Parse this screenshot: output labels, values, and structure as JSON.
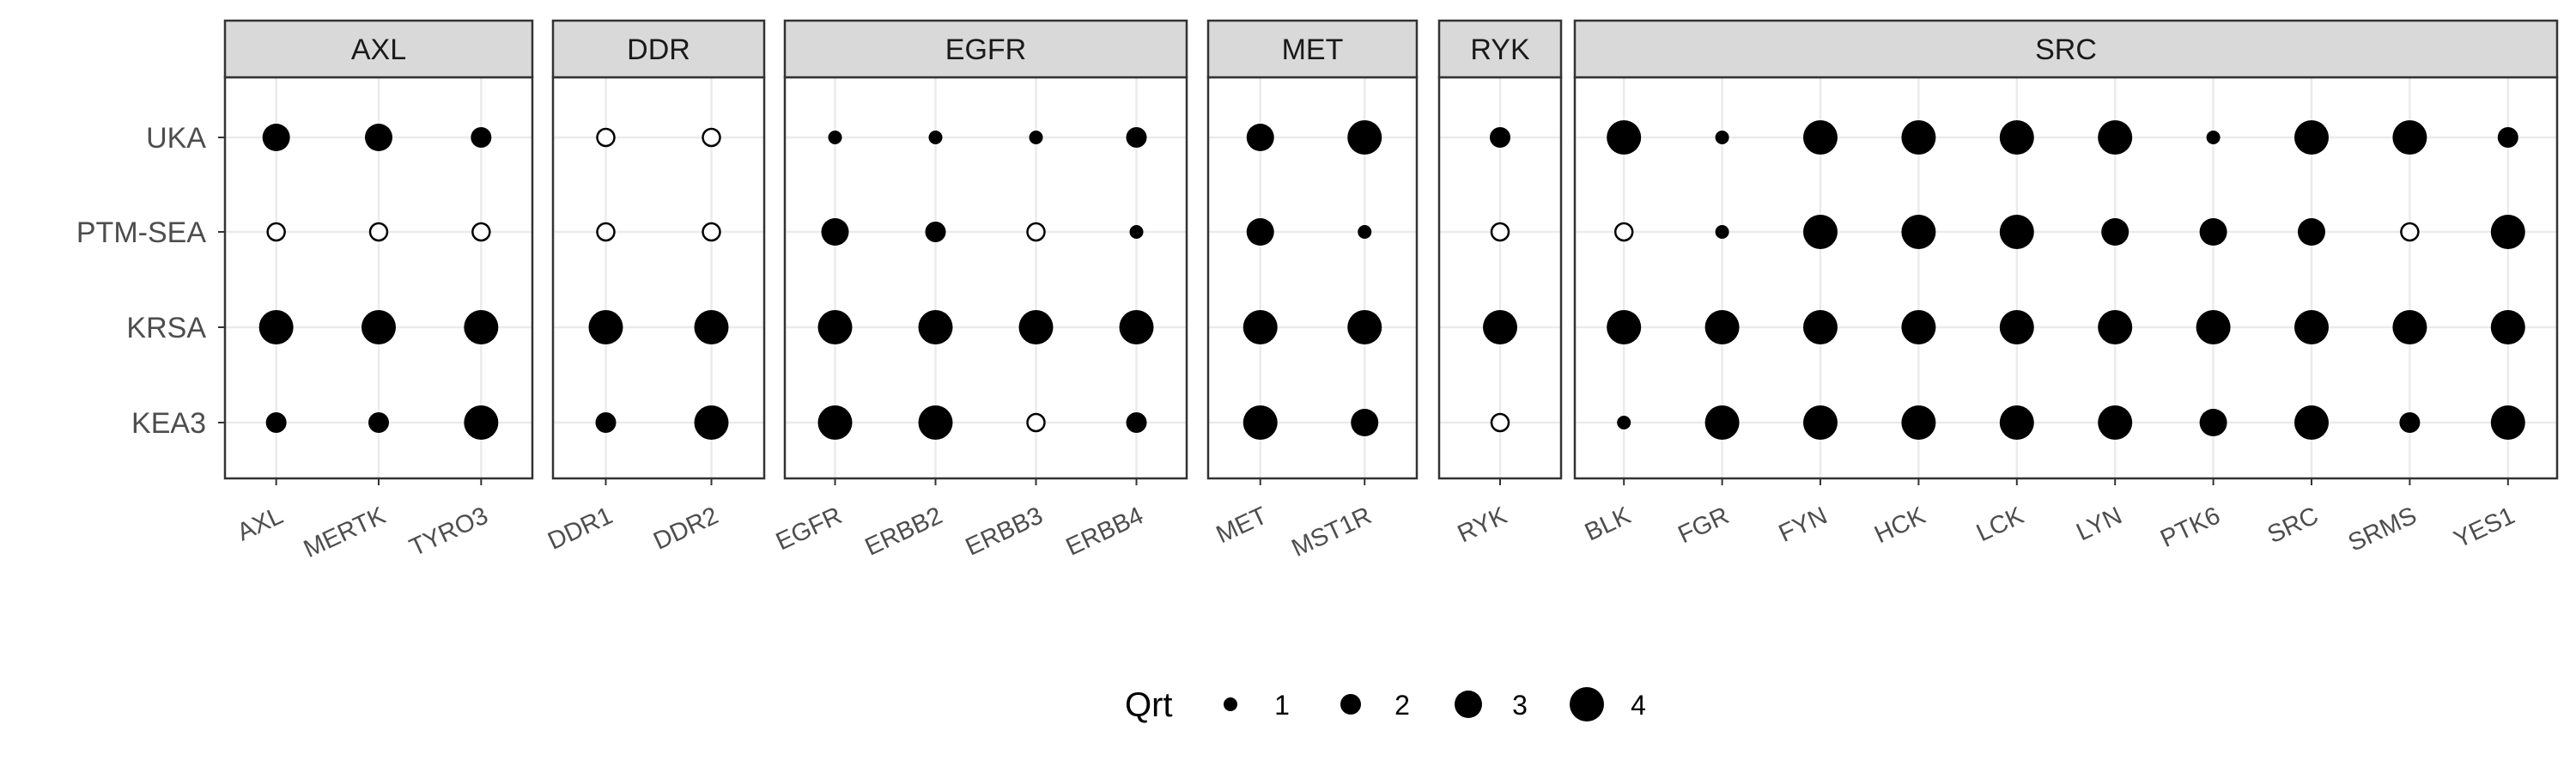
{
  "chart_data": {
    "type": "scatter",
    "y_categories": [
      "UKA",
      "PTM-SEA",
      "KRSA",
      "KEA3"
    ],
    "facets": [
      {
        "name": "AXL",
        "kinases": [
          "AXL",
          "MERTK",
          "TYRO3"
        ]
      },
      {
        "name": "DDR",
        "kinases": [
          "DDR1",
          "DDR2"
        ]
      },
      {
        "name": "EGFR",
        "kinases": [
          "EGFR",
          "ERBB2",
          "ERBB3",
          "ERBB4"
        ]
      },
      {
        "name": "MET",
        "kinases": [
          "MET",
          "MST1R"
        ]
      },
      {
        "name": "RYK",
        "kinases": [
          "RYK"
        ]
      },
      {
        "name": "SRC",
        "kinases": [
          "BLK",
          "FGR",
          "FYN",
          "HCK",
          "LCK",
          "LYN",
          "PTK6",
          "SRC",
          "SRMS",
          "YES1"
        ]
      }
    ],
    "points": [
      {
        "x": "AXL",
        "y": "UKA",
        "qrt": 3
      },
      {
        "x": "MERTK",
        "y": "UKA",
        "qrt": 3
      },
      {
        "x": "TYRO3",
        "y": "UKA",
        "qrt": 2
      },
      {
        "x": "AXL",
        "y": "PTM-SEA",
        "qrt": null
      },
      {
        "x": "MERTK",
        "y": "PTM-SEA",
        "qrt": null
      },
      {
        "x": "TYRO3",
        "y": "PTM-SEA",
        "qrt": null
      },
      {
        "x": "AXL",
        "y": "KRSA",
        "qrt": 4
      },
      {
        "x": "MERTK",
        "y": "KRSA",
        "qrt": 4
      },
      {
        "x": "TYRO3",
        "y": "KRSA",
        "qrt": 4
      },
      {
        "x": "AXL",
        "y": "KEA3",
        "qrt": 2
      },
      {
        "x": "MERTK",
        "y": "KEA3",
        "qrt": 2
      },
      {
        "x": "TYRO3",
        "y": "KEA3",
        "qrt": 4
      },
      {
        "x": "DDR1",
        "y": "UKA",
        "qrt": null
      },
      {
        "x": "DDR2",
        "y": "UKA",
        "qrt": null
      },
      {
        "x": "DDR1",
        "y": "PTM-SEA",
        "qrt": null
      },
      {
        "x": "DDR2",
        "y": "PTM-SEA",
        "qrt": null
      },
      {
        "x": "DDR1",
        "y": "KRSA",
        "qrt": 4
      },
      {
        "x": "DDR2",
        "y": "KRSA",
        "qrt": 4
      },
      {
        "x": "DDR1",
        "y": "KEA3",
        "qrt": 2
      },
      {
        "x": "DDR2",
        "y": "KEA3",
        "qrt": 4
      },
      {
        "x": "EGFR",
        "y": "UKA",
        "qrt": 1
      },
      {
        "x": "ERBB2",
        "y": "UKA",
        "qrt": 1
      },
      {
        "x": "ERBB3",
        "y": "UKA",
        "qrt": 1
      },
      {
        "x": "ERBB4",
        "y": "UKA",
        "qrt": 2
      },
      {
        "x": "EGFR",
        "y": "PTM-SEA",
        "qrt": 3
      },
      {
        "x": "ERBB2",
        "y": "PTM-SEA",
        "qrt": 2
      },
      {
        "x": "ERBB3",
        "y": "PTM-SEA",
        "qrt": null
      },
      {
        "x": "ERBB4",
        "y": "PTM-SEA",
        "qrt": 1
      },
      {
        "x": "EGFR",
        "y": "KRSA",
        "qrt": 4
      },
      {
        "x": "ERBB2",
        "y": "KRSA",
        "qrt": 4
      },
      {
        "x": "ERBB3",
        "y": "KRSA",
        "qrt": 4
      },
      {
        "x": "ERBB4",
        "y": "KRSA",
        "qrt": 4
      },
      {
        "x": "EGFR",
        "y": "KEA3",
        "qrt": 4
      },
      {
        "x": "ERBB2",
        "y": "KEA3",
        "qrt": 4
      },
      {
        "x": "ERBB3",
        "y": "KEA3",
        "qrt": null
      },
      {
        "x": "ERBB4",
        "y": "KEA3",
        "qrt": 2
      },
      {
        "x": "MET",
        "y": "UKA",
        "qrt": 3
      },
      {
        "x": "MST1R",
        "y": "UKA",
        "qrt": 4
      },
      {
        "x": "MET",
        "y": "PTM-SEA",
        "qrt": 3
      },
      {
        "x": "MST1R",
        "y": "PTM-SEA",
        "qrt": 1
      },
      {
        "x": "MET",
        "y": "KRSA",
        "qrt": 4
      },
      {
        "x": "MST1R",
        "y": "KRSA",
        "qrt": 4
      },
      {
        "x": "MET",
        "y": "KEA3",
        "qrt": 4
      },
      {
        "x": "MST1R",
        "y": "KEA3",
        "qrt": 3
      },
      {
        "x": "RYK",
        "y": "UKA",
        "qrt": 2
      },
      {
        "x": "RYK",
        "y": "PTM-SEA",
        "qrt": null
      },
      {
        "x": "RYK",
        "y": "KRSA",
        "qrt": 4
      },
      {
        "x": "RYK",
        "y": "KEA3",
        "qrt": null
      },
      {
        "x": "BLK",
        "y": "UKA",
        "qrt": 4
      },
      {
        "x": "FGR",
        "y": "UKA",
        "qrt": 1
      },
      {
        "x": "FYN",
        "y": "UKA",
        "qrt": 4
      },
      {
        "x": "HCK",
        "y": "UKA",
        "qrt": 4
      },
      {
        "x": "LCK",
        "y": "UKA",
        "qrt": 4
      },
      {
        "x": "LYN",
        "y": "UKA",
        "qrt": 4
      },
      {
        "x": "PTK6",
        "y": "UKA",
        "qrt": 1
      },
      {
        "x": "SRC",
        "y": "UKA",
        "qrt": 4
      },
      {
        "x": "SRMS",
        "y": "UKA",
        "qrt": 4
      },
      {
        "x": "YES1",
        "y": "UKA",
        "qrt": 2
      },
      {
        "x": "BLK",
        "y": "PTM-SEA",
        "qrt": null
      },
      {
        "x": "FGR",
        "y": "PTM-SEA",
        "qrt": 1
      },
      {
        "x": "FYN",
        "y": "PTM-SEA",
        "qrt": 4
      },
      {
        "x": "HCK",
        "y": "PTM-SEA",
        "qrt": 4
      },
      {
        "x": "LCK",
        "y": "PTM-SEA",
        "qrt": 4
      },
      {
        "x": "LYN",
        "y": "PTM-SEA",
        "qrt": 3
      },
      {
        "x": "PTK6",
        "y": "PTM-SEA",
        "qrt": 3
      },
      {
        "x": "SRC",
        "y": "PTM-SEA",
        "qrt": 3
      },
      {
        "x": "SRMS",
        "y": "PTM-SEA",
        "qrt": null
      },
      {
        "x": "YES1",
        "y": "PTM-SEA",
        "qrt": 4
      },
      {
        "x": "BLK",
        "y": "KRSA",
        "qrt": 4
      },
      {
        "x": "FGR",
        "y": "KRSA",
        "qrt": 4
      },
      {
        "x": "FYN",
        "y": "KRSA",
        "qrt": 4
      },
      {
        "x": "HCK",
        "y": "KRSA",
        "qrt": 4
      },
      {
        "x": "LCK",
        "y": "KRSA",
        "qrt": 4
      },
      {
        "x": "LYN",
        "y": "KRSA",
        "qrt": 4
      },
      {
        "x": "PTK6",
        "y": "KRSA",
        "qrt": 4
      },
      {
        "x": "SRC",
        "y": "KRSA",
        "qrt": 4
      },
      {
        "x": "SRMS",
        "y": "KRSA",
        "qrt": 4
      },
      {
        "x": "YES1",
        "y": "KRSA",
        "qrt": 4
      },
      {
        "x": "BLK",
        "y": "KEA3",
        "qrt": 1
      },
      {
        "x": "FGR",
        "y": "KEA3",
        "qrt": 4
      },
      {
        "x": "FYN",
        "y": "KEA3",
        "qrt": 4
      },
      {
        "x": "HCK",
        "y": "KEA3",
        "qrt": 4
      },
      {
        "x": "LCK",
        "y": "KEA3",
        "qrt": 4
      },
      {
        "x": "LYN",
        "y": "KEA3",
        "qrt": 4
      },
      {
        "x": "PTK6",
        "y": "KEA3",
        "qrt": 3
      },
      {
        "x": "SRC",
        "y": "KEA3",
        "qrt": 4
      },
      {
        "x": "SRMS",
        "y": "KEA3",
        "qrt": 2
      },
      {
        "x": "YES1",
        "y": "KEA3",
        "qrt": 4
      }
    ],
    "legend": {
      "title": "Qrt",
      "values": [
        1,
        2,
        3,
        4
      ],
      "position": "bottom"
    },
    "missing_marker": "open circle",
    "grid": true,
    "colors": {
      "point": "#000000",
      "strip_bg": "#d9d9d9",
      "panel_border": "#333333",
      "grid": "#ebebeb",
      "text": "#4d4d4d"
    }
  }
}
